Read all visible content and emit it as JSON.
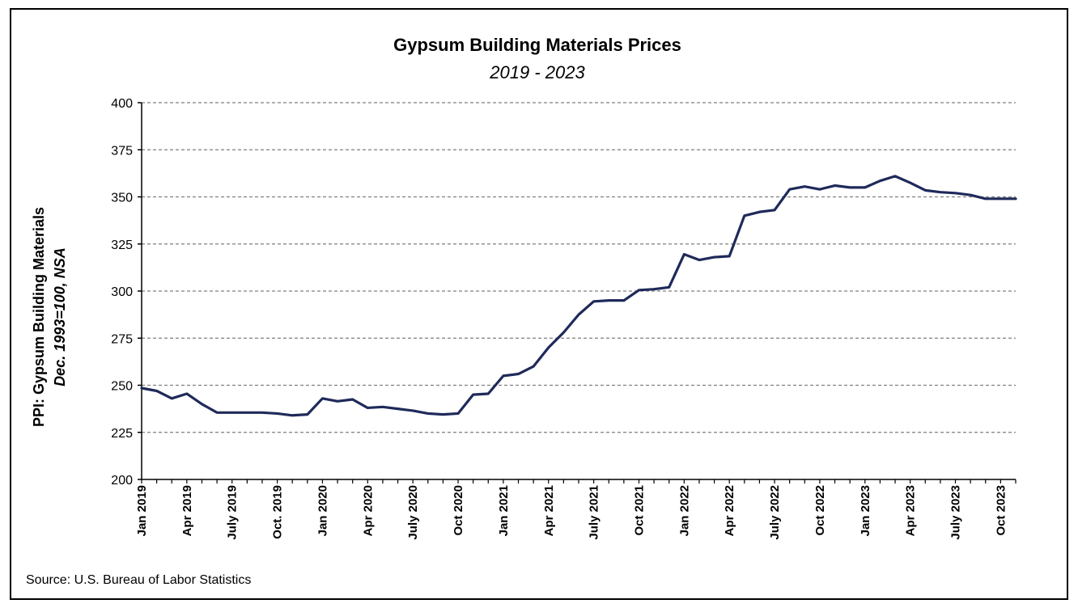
{
  "chart_data": {
    "type": "line",
    "title": "Gypsum Building Materials Prices",
    "subtitle": "2019 - 2023",
    "ylabel": "PPI: Gypsum Building Materials",
    "ylabel_sub": "Dec. 1993=100, NSA",
    "xlabel": "",
    "ylim": [
      200,
      400
    ],
    "yticks": [
      200,
      225,
      250,
      275,
      300,
      325,
      350,
      375,
      400
    ],
    "grid": true,
    "x_tick_labels": [
      {
        "index": 0,
        "label": "Jan 2019"
      },
      {
        "index": 3,
        "label": "Apr 2019"
      },
      {
        "index": 6,
        "label": "July 2019"
      },
      {
        "index": 9,
        "label": "Oct. 2019"
      },
      {
        "index": 12,
        "label": "Jan 2020"
      },
      {
        "index": 15,
        "label": "Apr 2020"
      },
      {
        "index": 18,
        "label": "July 2020"
      },
      {
        "index": 21,
        "label": "Oct 2020"
      },
      {
        "index": 24,
        "label": "Jan 2021"
      },
      {
        "index": 27,
        "label": "Apr 2021"
      },
      {
        "index": 30,
        "label": "July 2021"
      },
      {
        "index": 33,
        "label": "Oct 2021"
      },
      {
        "index": 36,
        "label": "Jan 2022"
      },
      {
        "index": 39,
        "label": "Apr 2022"
      },
      {
        "index": 42,
        "label": "July 2022"
      },
      {
        "index": 45,
        "label": "Oct 2022"
      },
      {
        "index": 48,
        "label": "Jan 2023"
      },
      {
        "index": 51,
        "label": "Apr 2023"
      },
      {
        "index": 54,
        "label": "July 2023"
      },
      {
        "index": 57,
        "label": "Oct 2023"
      }
    ],
    "series": [
      {
        "color": "#1f2a5a",
        "values": [
          248.5,
          247.0,
          243.0,
          245.5,
          240.0,
          235.5,
          235.5,
          235.5,
          235.5,
          235.0,
          234.0,
          234.5,
          243.0,
          241.5,
          242.5,
          238.0,
          238.5,
          237.5,
          236.5,
          235.0,
          234.5,
          235.0,
          245.0,
          245.5,
          255.0,
          256.0,
          260.0,
          270.0,
          278.0,
          287.5,
          294.5,
          295.0,
          295.0,
          300.5,
          301.0,
          302.0,
          319.5,
          316.5,
          318.0,
          318.5,
          340.0,
          342.0,
          343.0,
          354.0,
          355.5,
          354.0,
          356.0,
          355.0,
          355.0,
          358.5,
          361.0,
          357.5,
          353.5,
          352.5,
          352.0,
          351.0,
          349.0,
          349.0,
          349.0
        ]
      }
    ]
  },
  "source": "Source: U.S. Bureau of Labor Statistics"
}
